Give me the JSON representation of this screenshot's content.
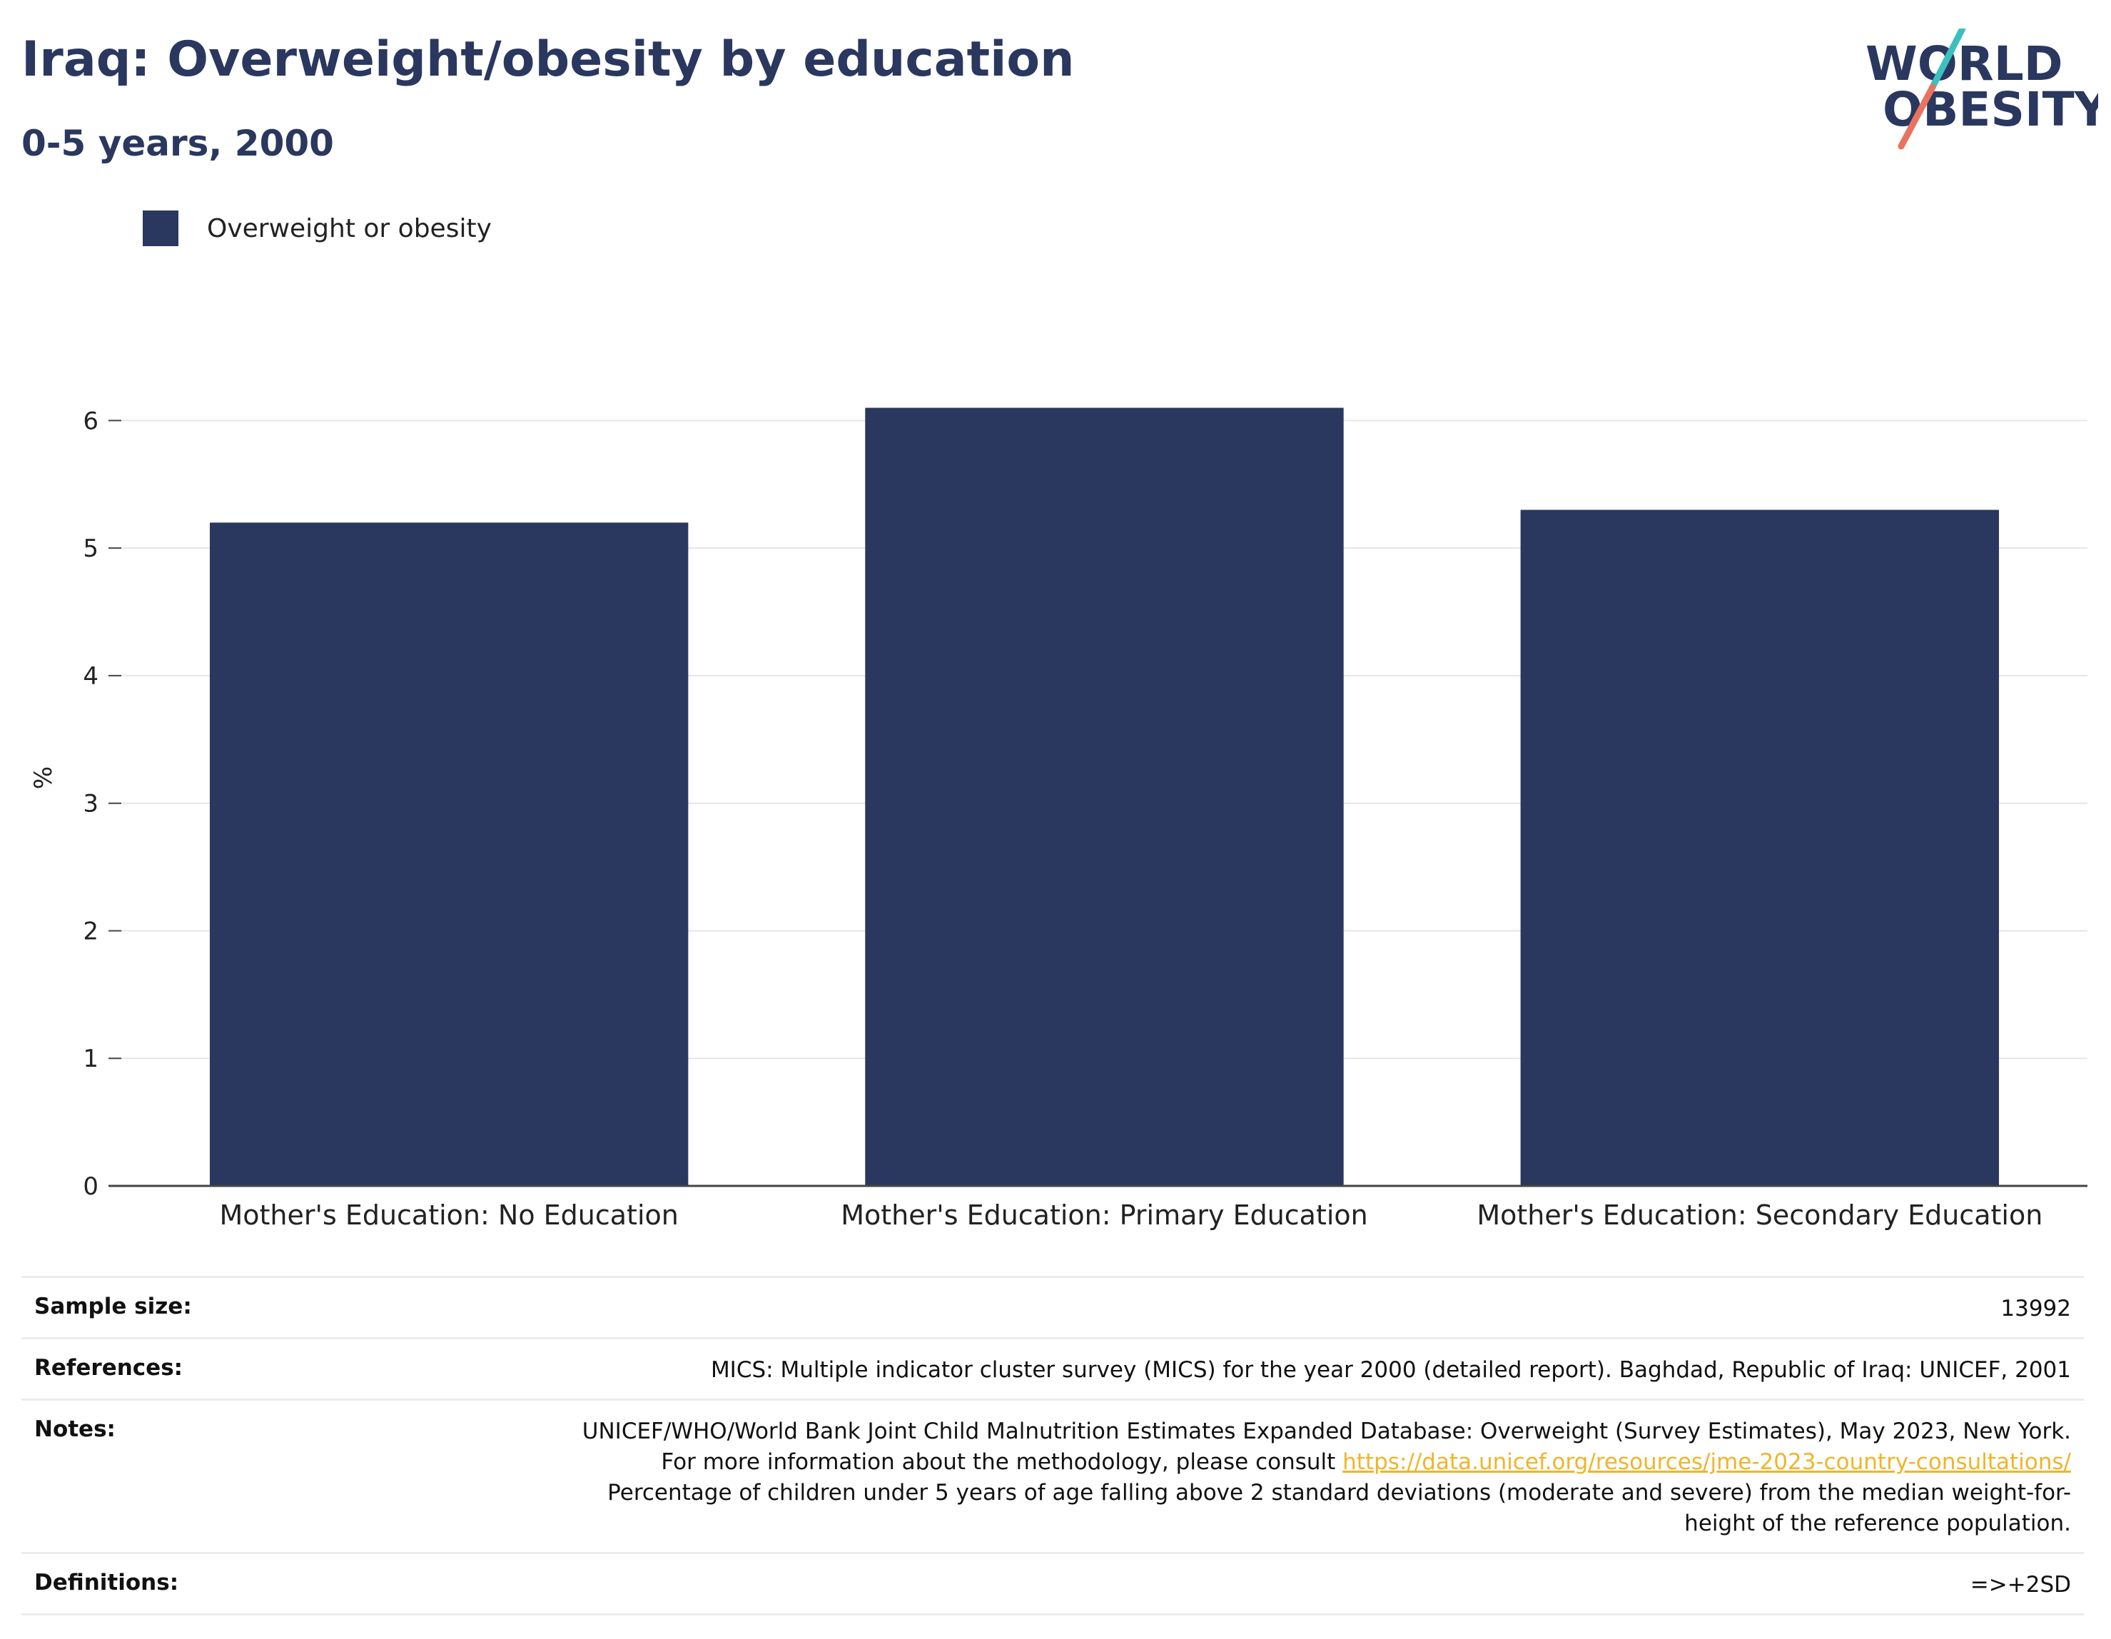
{
  "header": {
    "title": "Iraq: Overweight/obesity by education",
    "subtitle": "0-5 years, 2000"
  },
  "logo": {
    "line1": "WORLD",
    "line2": "OBESITY"
  },
  "legend": {
    "label": "Overweight or obesity"
  },
  "colors": {
    "bar": "#2a375f",
    "title": "#2a375f",
    "link": "#f0b528",
    "logo_teal": "#3bbfbf",
    "logo_coral": "#e8735f"
  },
  "chart_data": {
    "type": "bar",
    "categories": [
      "Mother's Education: No Education",
      "Mother's Education: Primary Education",
      "Mother's Education: Secondary Education"
    ],
    "series": [
      {
        "name": "Overweight or obesity",
        "values": [
          5.2,
          6.1,
          5.3
        ]
      }
    ],
    "ylabel": "%",
    "ylim": [
      0,
      6.5
    ],
    "yticks": [
      0,
      1,
      2,
      3,
      4,
      5,
      6
    ],
    "grid": true,
    "legend_position": "top-left"
  },
  "info": {
    "sample_size_label": "Sample size:",
    "sample_size_value": "13992",
    "references_label": "References:",
    "references_value": "MICS: Multiple indicator cluster survey (MICS) for the year 2000 (detailed report). Baghdad, Republic of Iraq: UNICEF, 2001",
    "notes_label": "Notes:",
    "notes_text_1": "UNICEF/WHO/World Bank Joint Child Malnutrition Estimates Expanded Database: Overweight (Survey Estimates), May 2023, New York. For more information about the methodology, please consult ",
    "notes_link": "https://data.unicef.org/resources/jme-2023-country-consultations/",
    "notes_text_2": " Percentage of children under 5 years of age falling above 2 standard deviations (moderate and severe) from the median weight-for-height of the reference population.",
    "definitions_label": "Definitions:",
    "definitions_value": "=>+2SD"
  }
}
